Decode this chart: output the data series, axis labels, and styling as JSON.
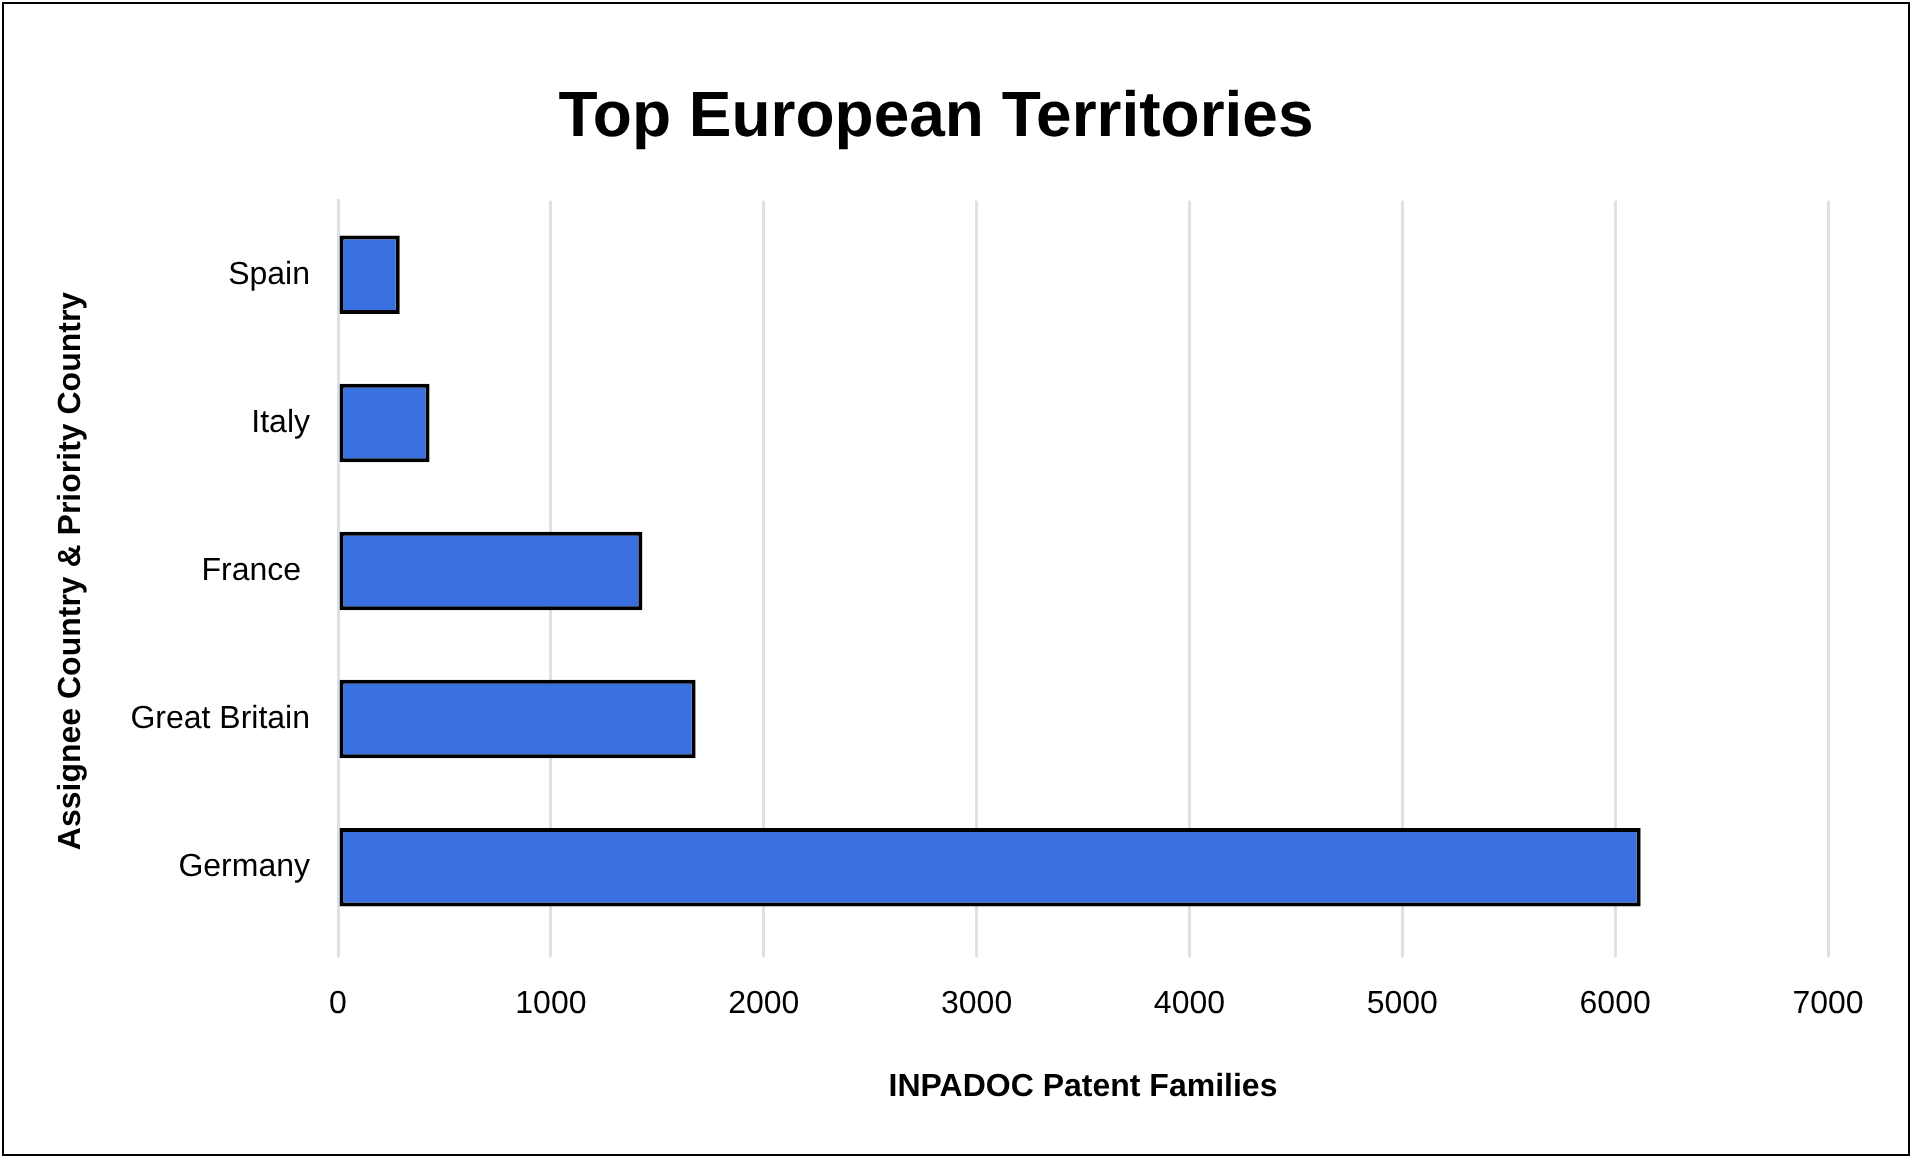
{
  "chart_data": {
    "type": "bar",
    "orientation": "horizontal",
    "title": "Top European Territories",
    "xlabel": "INPADOC Patent Families",
    "ylabel": "Assignee Country & Priority Country",
    "categories": [
      "Spain",
      "Italy",
      "France ",
      "Great Britain",
      "Germany"
    ],
    "values": [
      290,
      430,
      1430,
      1680,
      6120
    ],
    "color": "#3a6fe0",
    "xlim": [
      0,
      7000
    ],
    "xticks": [
      0,
      1000,
      2000,
      3000,
      4000,
      5000,
      6000,
      7000
    ],
    "grid": "x"
  }
}
